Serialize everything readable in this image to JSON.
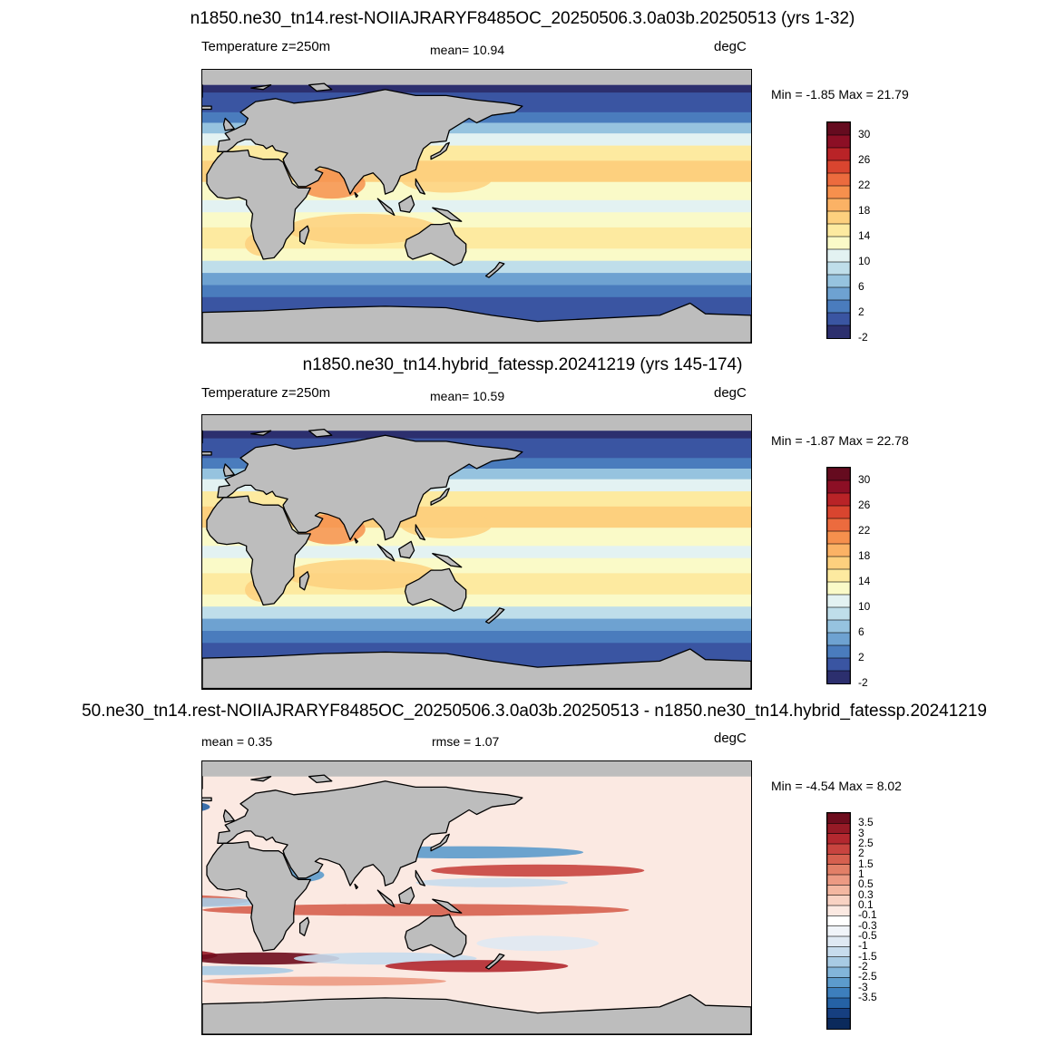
{
  "panels": [
    {
      "title": "n1850.ne30_tn14.rest-NOIIAJRARYF8485OC_20250506.3.0a03b.20250513 (yrs 1-32)",
      "left_label": "Temperature z=250m",
      "center_label": "mean=  10.94",
      "units": "degC",
      "minmax": "Min =  -1.85 Max =  21.79",
      "map_kind": "temperature",
      "colorbar": {
        "colors": [
          "#2c2f6e",
          "#3a55a2",
          "#4a7cbd",
          "#6ea2d1",
          "#96c3df",
          "#bfdeea",
          "#e3f2f2",
          "#fafac8",
          "#fdeaa0",
          "#fdd07e",
          "#fbb265",
          "#f6904d",
          "#ec6b3e",
          "#d9452f",
          "#b92327",
          "#8c0f25",
          "#650b1f"
        ],
        "labels": [
          "30",
          "26",
          "22",
          "18",
          "14",
          "10",
          "6",
          "2",
          "-2"
        ]
      }
    },
    {
      "title": "n1850.ne30_tn14.hybrid_fatessp.20241219 (yrs 145-174)",
      "left_label": "Temperature z=250m",
      "center_label": "mean=  10.59",
      "units": "degC",
      "minmax": "Min =  -1.87 Max =  22.78",
      "map_kind": "temperature",
      "colorbar": {
        "colors": [
          "#2c2f6e",
          "#3a55a2",
          "#4a7cbd",
          "#6ea2d1",
          "#96c3df",
          "#bfdeea",
          "#e3f2f2",
          "#fafac8",
          "#fdeaa0",
          "#fdd07e",
          "#fbb265",
          "#f6904d",
          "#ec6b3e",
          "#d9452f",
          "#b92327",
          "#8c0f25",
          "#650b1f"
        ],
        "labels": [
          "30",
          "26",
          "22",
          "18",
          "14",
          "10",
          "6",
          "2",
          "-2"
        ]
      }
    },
    {
      "title": "50.ne30_tn14.rest-NOIIAJRARYF8485OC_20250506.3.0a03b.20250513 - n1850.ne30_tn14.hybrid_fatessp.20241219",
      "left_label": "mean =   0.35",
      "center_label": "rmse =    1.07",
      "units": "degC",
      "minmax": "Min =  -4.54 Max =   8.02",
      "map_kind": "difference",
      "colorbar": {
        "colors": [
          "#0b2a5c",
          "#163f80",
          "#2562a5",
          "#3d7fbd",
          "#5c9bcc",
          "#82b5da",
          "#a8cbe4",
          "#c7dced",
          "#dfe9f3",
          "#f0f4f9",
          "#ffffff",
          "#fbe9e2",
          "#f8d2c3",
          "#f3b7a1",
          "#ec9a83",
          "#e27f67",
          "#d6604f",
          "#c8443f",
          "#b3282f",
          "#961a26",
          "#6e0c1d"
        ],
        "labels": [
          "3.5",
          "3",
          "2.5",
          "2",
          "1.5",
          "1",
          "0.5",
          "0.3",
          "0.1",
          "-0.1",
          "-0.3",
          "-0.5",
          "-1",
          "-1.5",
          "-2",
          "-2.5",
          "-3",
          "-3.5"
        ]
      }
    }
  ]
}
